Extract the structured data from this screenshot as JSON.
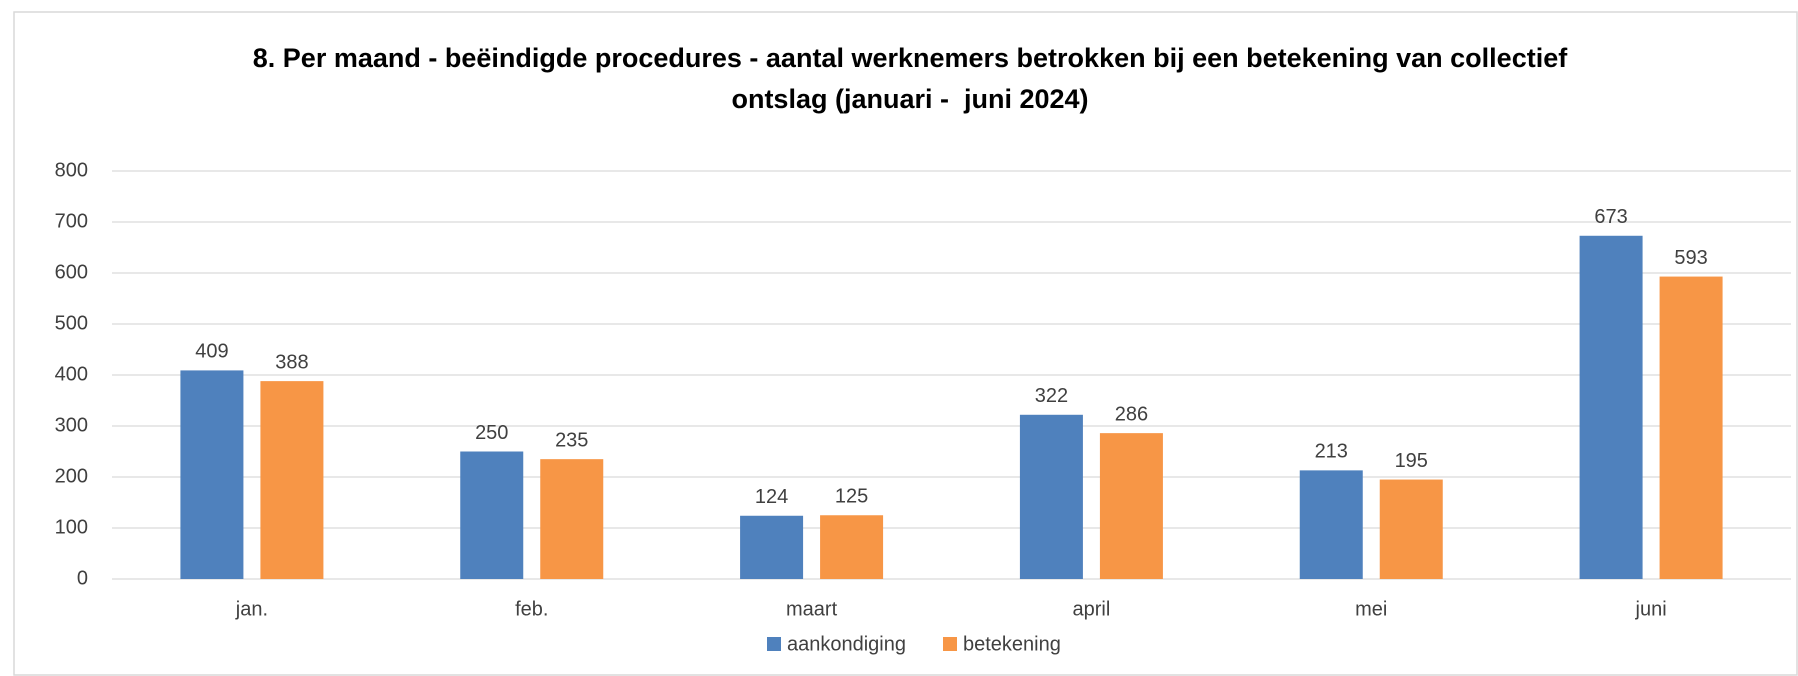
{
  "chart_data": {
    "type": "bar",
    "title": "8. Per maand - beëindigde procedures - aantal werknemers betrokken bij een betekening van collectief\nontslag (januari -  juni 2024)",
    "categories": [
      "jan.",
      "feb.",
      "maart",
      "april",
      "mei",
      "juni"
    ],
    "series": [
      {
        "name": "aankondiging",
        "color": "#4f81bd",
        "values": [
          409,
          250,
          124,
          322,
          213,
          673
        ]
      },
      {
        "name": "betekening",
        "color": "#f79646",
        "values": [
          388,
          235,
          125,
          286,
          195,
          593
        ]
      }
    ],
    "ylim": [
      0,
      800
    ],
    "yticks": [
      0,
      100,
      200,
      300,
      400,
      500,
      600,
      700,
      800
    ],
    "grid": true,
    "legend": "bottom"
  }
}
